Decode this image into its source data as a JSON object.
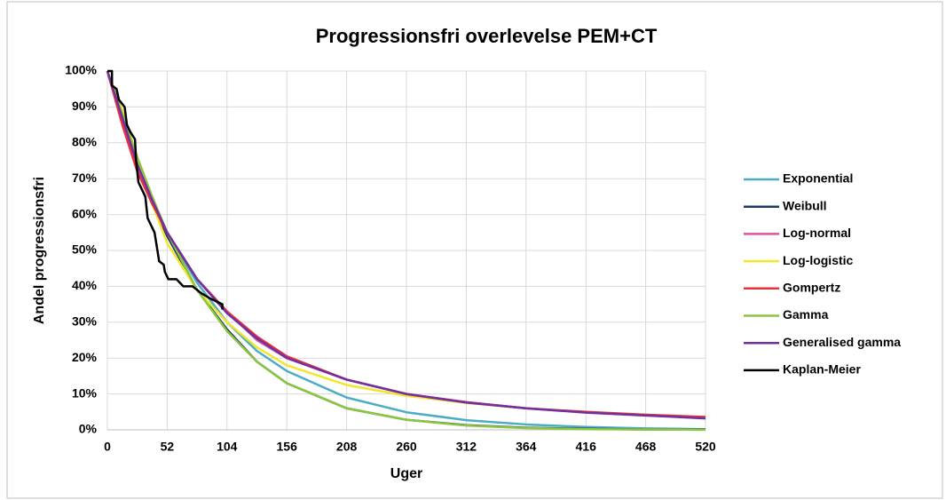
{
  "chart_data": {
    "type": "line",
    "title": "Progressionsfri overlevelse PEM+CT",
    "x_label": "Uger",
    "y_label": "Andel progressionsfri",
    "x": [
      0,
      13,
      26,
      39,
      52,
      78,
      104,
      130,
      156,
      208,
      260,
      312,
      364,
      416,
      468,
      520
    ],
    "xlim": [
      0,
      520
    ],
    "xticks": [
      0,
      52,
      104,
      156,
      208,
      260,
      312,
      364,
      416,
      468,
      520
    ],
    "ylim": [
      0,
      100
    ],
    "yticks": [
      {
        "value": 0,
        "label": "0%"
      },
      {
        "value": 10,
        "label": "10%"
      },
      {
        "value": 20,
        "label": "20%"
      },
      {
        "value": 30,
        "label": "30%"
      },
      {
        "value": 40,
        "label": "40%"
      },
      {
        "value": 50,
        "label": "50%"
      },
      {
        "value": 60,
        "label": "60%"
      },
      {
        "value": 70,
        "label": "70%"
      },
      {
        "value": 80,
        "label": "80%"
      },
      {
        "value": 90,
        "label": "90%"
      },
      {
        "value": 100,
        "label": "100%"
      }
    ],
    "grid": true,
    "legend": "right",
    "series": [
      {
        "name": "Exponential",
        "color": "#4bacc6",
        "values": [
          100,
          86,
          74,
          64,
          55,
          41,
          30,
          22,
          16.4,
          9,
          4.9,
          2.7,
          1.5,
          0.8,
          0.4,
          0.2
        ]
      },
      {
        "name": "Weibull",
        "color": "#1f3864",
        "values": [
          100,
          86,
          73,
          63,
          54,
          39,
          28,
          19,
          13,
          6,
          2.8,
          1.3,
          0.6,
          0.3,
          0.1,
          0.1
        ]
      },
      {
        "name": "Log-normal",
        "color": "#d9559f",
        "values": [
          100,
          87,
          73,
          63,
          55,
          42,
          33,
          25,
          20,
          14,
          10,
          7.7,
          6,
          4.9,
          4.1,
          3.4
        ]
      },
      {
        "name": "Log-logistic",
        "color": "#f2e52e",
        "values": [
          100,
          89,
          76,
          63,
          52,
          39,
          30,
          23,
          18,
          12.5,
          9.5,
          7.5,
          6,
          5,
          4.2,
          3.5
        ]
      },
      {
        "name": "Gompertz",
        "color": "#e8313b",
        "values": [
          100,
          85,
          72,
          63,
          55,
          42,
          33,
          26,
          20.5,
          14,
          10,
          7.7,
          6,
          5,
          4.2,
          3.6
        ]
      },
      {
        "name": "Gamma",
        "color": "#8cc63f",
        "values": [
          100,
          88,
          76,
          65,
          55,
          39,
          27.5,
          19,
          13,
          6,
          2.8,
          1.2,
          0.5,
          0.2,
          0.1,
          0
        ]
      },
      {
        "name": "Generalised gamma",
        "color": "#7030a0",
        "values": [
          100,
          87,
          74,
          64,
          55,
          42,
          32.5,
          25.5,
          20,
          14,
          10,
          7.6,
          6,
          4.8,
          4,
          3.2
        ]
      },
      {
        "name": "Kaplan-Meier",
        "color": "#000000",
        "x": [
          0,
          4,
          4,
          8,
          10,
          15,
          17,
          20,
          24,
          25,
          27,
          30,
          33,
          35,
          38,
          41,
          43,
          45,
          49,
          50,
          53,
          60,
          66,
          74,
          78,
          82,
          90,
          100,
          100
        ],
        "values": [
          100,
          100,
          96,
          95,
          92,
          90,
          85,
          83,
          81,
          75,
          69,
          67,
          65,
          59,
          57,
          55,
          51,
          47,
          46,
          44,
          42,
          42,
          40,
          40,
          39,
          38,
          36.5,
          35,
          33.5
        ]
      }
    ]
  }
}
